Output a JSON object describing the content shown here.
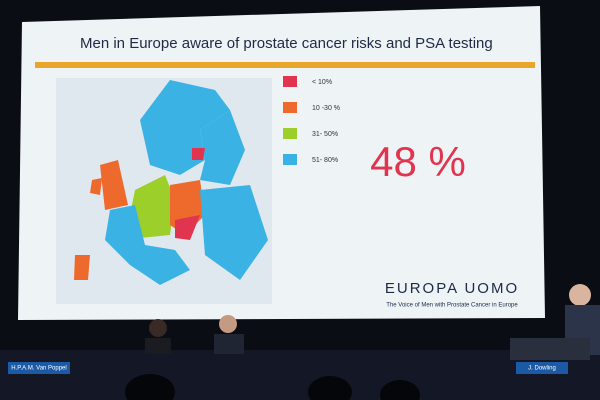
{
  "slide": {
    "title": "Men in Europe aware of prostate cancer risks and PSA testing",
    "legend": [
      {
        "label": "< 10%",
        "color": "#e0344f"
      },
      {
        "label": "10 -30 %",
        "color": "#ee6a2c"
      },
      {
        "label": "31- 50%",
        "color": "#9ccf2a"
      },
      {
        "label": "51- 80%",
        "color": "#3ab2e4"
      }
    ],
    "highlight": "48 %",
    "logo": "EUROPA UOMO",
    "tagline": "The Voice of Men with Prostate Cancer in Europe"
  },
  "nameplates": [
    "H.P.A.M. Van Poppel",
    "J. Dowling"
  ]
}
